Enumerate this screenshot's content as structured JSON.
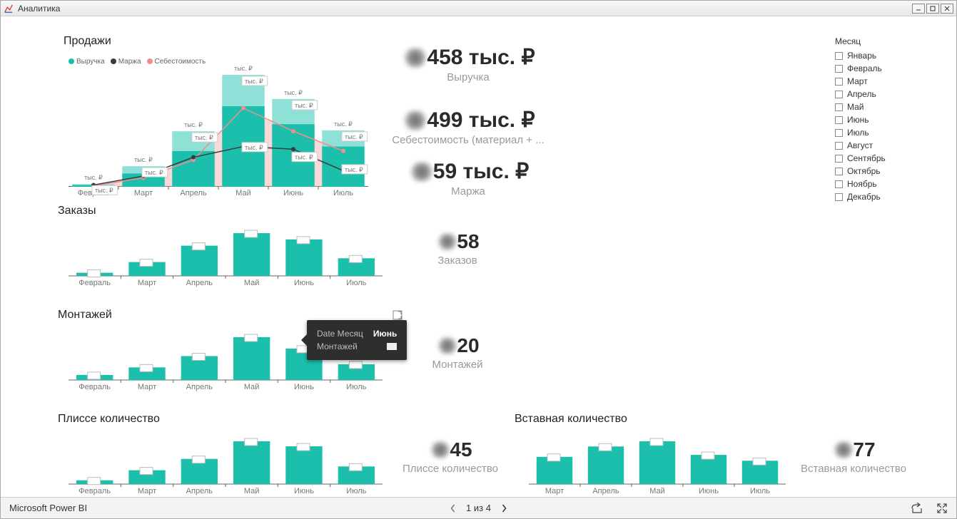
{
  "window": {
    "title": "Аналитика"
  },
  "footer": {
    "brand": "Microsoft Power BI",
    "page_indicator": "1 из 4"
  },
  "colors": {
    "teal": "#1bbfab",
    "teal_light": "#8fe0d6",
    "dark": "#3a3a3a",
    "salmon": "#f08f8e",
    "salmon_fill": "rgba(240,143,142,0.35)",
    "grid": "#666666"
  },
  "slicer": {
    "title": "Месяц",
    "items": [
      "Январь",
      "Февраль",
      "Март",
      "Апрель",
      "Май",
      "Июнь",
      "Июль",
      "Август",
      "Сентябрь",
      "Октябрь",
      "Ноябрь",
      "Декабрь"
    ]
  },
  "sales_combo": {
    "title": "Продажи",
    "legend": [
      {
        "label": "Выручка",
        "color": "#1bbfab"
      },
      {
        "label": "Маржа",
        "color": "#3a3a3a"
      },
      {
        "label": "Себестоимость",
        "color": "#f08f8e"
      }
    ],
    "categories": [
      "Февраль",
      "Март",
      "Апрель",
      "Май",
      "Июнь",
      "Июль"
    ],
    "revenue_bottom": [
      2,
      15,
      40,
      90,
      70,
      45
    ],
    "revenue_top": [
      1,
      8,
      22,
      35,
      28,
      18
    ],
    "margin_line": [
      2,
      12,
      33,
      45,
      42,
      18
    ],
    "cost_line": [
      1,
      10,
      30,
      88,
      62,
      40
    ],
    "bar_bottom_color": "#1bbfab",
    "bar_top_color": "#8fe0d6",
    "label_text": "тыс. ₽"
  },
  "kpis": {
    "revenue": {
      "value": "458 тыс. ₽",
      "label": "Выручка"
    },
    "cost": {
      "value": "499 тыс. ₽",
      "label": "Себестоимость (материал + ..."
    },
    "margin": {
      "value": "59 тыс. ₽",
      "label": "Маржа"
    },
    "orders": {
      "value": "58",
      "label": "Заказов"
    },
    "install": {
      "value": "20",
      "label": "Монтажей"
    },
    "plisse": {
      "value": "45",
      "label": "Плиссе количество"
    },
    "insert": {
      "value": "77",
      "label": "Вставная количество"
    }
  },
  "orders_chart": {
    "title": "Заказы",
    "categories": [
      "Февраль",
      "Март",
      "Апрель",
      "Май",
      "Июнь",
      "Июль"
    ],
    "values": [
      5,
      22,
      48,
      68,
      58,
      28
    ],
    "color": "#1bbfab"
  },
  "install_chart": {
    "title": "Монтажей",
    "categories": [
      "Февраль",
      "Март",
      "Апрель",
      "Май",
      "Июнь",
      "Июль"
    ],
    "values": [
      8,
      20,
      38,
      68,
      50,
      25
    ],
    "color": "#1bbfab"
  },
  "plisse_chart": {
    "title": "Плиссе количество",
    "categories": [
      "Февраль",
      "Март",
      "Апрель",
      "Май",
      "Июнь",
      "Июль"
    ],
    "values": [
      6,
      22,
      40,
      68,
      60,
      28
    ],
    "color": "#1bbfab"
  },
  "insert_chart": {
    "title": "Вставная количество",
    "categories": [
      "Март",
      "Апрель",
      "Май",
      "Июнь",
      "Июль"
    ],
    "values": [
      42,
      58,
      66,
      45,
      36
    ],
    "color": "#1bbfab"
  },
  "tooltip": {
    "rows": [
      {
        "k": "Date Месяц",
        "v": "Июнь"
      },
      {
        "k": "Монтажей",
        "v": "[blk]"
      }
    ]
  }
}
